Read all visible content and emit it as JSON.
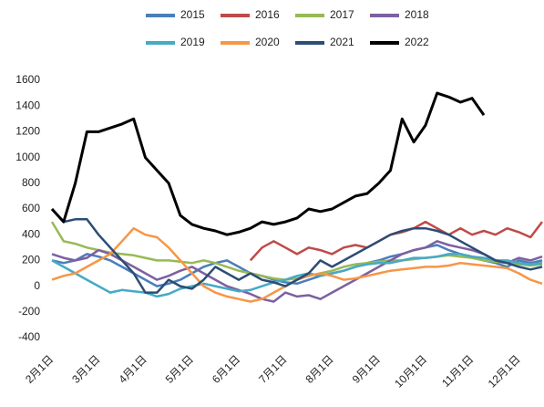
{
  "chart_data": {
    "type": "line",
    "categories": [
      "2月1日",
      null,
      null,
      null,
      "3月1日",
      null,
      null,
      null,
      "4月1日",
      null,
      null,
      null,
      "5月1日",
      null,
      null,
      null,
      "6月1日",
      null,
      null,
      null,
      "7月1日",
      null,
      null,
      null,
      "8月1日",
      null,
      null,
      null,
      "9月1日",
      null,
      null,
      null,
      "10月1日",
      null,
      null,
      null,
      "11月1日",
      null,
      null,
      null,
      "12月1日",
      null,
      null
    ],
    "ylim": [
      -400,
      1600
    ],
    "yticks": [
      -400,
      -200,
      0,
      200,
      400,
      600,
      800,
      1000,
      1200,
      1400,
      1600
    ],
    "grid": false,
    "legend": "top",
    "series": [
      {
        "name": "2015",
        "color": "#4a7ebb",
        "values": [
          200,
          180,
          200,
          250,
          230,
          200,
          150,
          100,
          50,
          0,
          20,
          50,
          100,
          150,
          180,
          200,
          150,
          100,
          80,
          50,
          30,
          20,
          50,
          80,
          100,
          120,
          150,
          180,
          200,
          230,
          250,
          280,
          300,
          320,
          280,
          250,
          230,
          200,
          180,
          150,
          200,
          180,
          200
        ]
      },
      {
        "name": "2016",
        "color": "#be4b48",
        "values": [
          null,
          null,
          null,
          null,
          null,
          null,
          null,
          null,
          null,
          null,
          null,
          null,
          null,
          null,
          null,
          null,
          null,
          200,
          300,
          350,
          300,
          250,
          300,
          280,
          250,
          300,
          320,
          300,
          350,
          400,
          420,
          450,
          500,
          450,
          400,
          450,
          400,
          430,
          400,
          450,
          420,
          380,
          500
        ]
      },
      {
        "name": "2017",
        "color": "#98b954",
        "values": [
          500,
          350,
          330,
          300,
          280,
          260,
          250,
          240,
          220,
          200,
          200,
          190,
          180,
          200,
          180,
          150,
          120,
          100,
          80,
          60,
          50,
          60,
          80,
          100,
          120,
          150,
          170,
          180,
          190,
          200,
          200,
          210,
          220,
          230,
          240,
          230,
          220,
          200,
          190,
          180,
          170,
          160,
          170
        ]
      },
      {
        "name": "2018",
        "color": "#7d60a0",
        "values": [
          250,
          220,
          200,
          220,
          280,
          250,
          200,
          150,
          100,
          50,
          80,
          120,
          150,
          100,
          50,
          0,
          -30,
          -60,
          -100,
          -120,
          -50,
          -80,
          -70,
          -100,
          -50,
          0,
          50,
          100,
          150,
          200,
          250,
          280,
          300,
          350,
          320,
          300,
          280,
          250,
          200,
          180,
          220,
          200,
          230
        ]
      },
      {
        "name": "2019",
        "color": "#46aac5",
        "values": [
          200,
          150,
          100,
          50,
          0,
          -50,
          -30,
          -40,
          -50,
          -80,
          -60,
          -20,
          0,
          20,
          0,
          -20,
          -40,
          -30,
          0,
          30,
          50,
          80,
          100,
          80,
          100,
          120,
          150,
          170,
          180,
          180,
          200,
          220,
          220,
          230,
          250,
          250,
          230,
          220,
          200,
          200,
          180,
          170,
          180
        ]
      },
      {
        "name": "2020",
        "color": "#f79646",
        "values": [
          50,
          80,
          100,
          150,
          200,
          250,
          350,
          450,
          400,
          380,
          300,
          200,
          100,
          0,
          -50,
          -80,
          -100,
          -120,
          -100,
          -50,
          0,
          50,
          80,
          100,
          80,
          50,
          60,
          80,
          100,
          120,
          130,
          140,
          150,
          150,
          160,
          180,
          170,
          160,
          150,
          140,
          100,
          50,
          20
        ]
      },
      {
        "name": "2021",
        "color": "#2c4d75",
        "values": [
          600,
          500,
          520,
          520,
          400,
          300,
          200,
          100,
          -50,
          -50,
          50,
          0,
          -20,
          50,
          150,
          100,
          50,
          100,
          50,
          30,
          0,
          50,
          100,
          200,
          150,
          200,
          250,
          300,
          350,
          400,
          430,
          450,
          450,
          430,
          400,
          350,
          300,
          250,
          200,
          180,
          150,
          130,
          150
        ]
      },
      {
        "name": "2022",
        "color": "#000000",
        "values": [
          600,
          500,
          800,
          1200,
          1200,
          1230,
          1260,
          1300,
          1000,
          900,
          800,
          550,
          480,
          450,
          430,
          400,
          420,
          450,
          500,
          480,
          500,
          530,
          600,
          580,
          600,
          650,
          700,
          720,
          800,
          900,
          1300,
          1120,
          1250,
          1500,
          1470,
          1430,
          1460,
          1330,
          null,
          null,
          null,
          null,
          null
        ]
      }
    ]
  }
}
